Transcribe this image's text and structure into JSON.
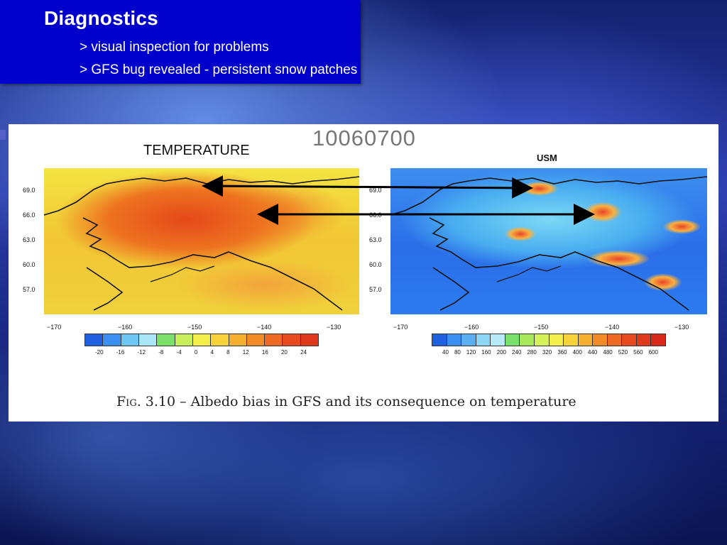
{
  "slide": {
    "title": "Diagnostics",
    "bullets": [
      "> visual inspection for problems",
      "> GFS bug revealed - persistent snow patches"
    ]
  },
  "figure": {
    "date_code": "10060700",
    "left_map": {
      "title": "TEMPERATURE",
      "colorbar_ticks": [
        "-20",
        "-16",
        "-12",
        "-8",
        "-4",
        "0",
        "4",
        "8",
        "12",
        "16",
        "20",
        "24"
      ],
      "colorbar_colors": [
        "#1f5fe0",
        "#3a8ff0",
        "#6ec6f5",
        "#a8e6f8",
        "#7be06a",
        "#c8ee5a",
        "#f3ee4a",
        "#f8d23a",
        "#f6b030",
        "#f28a28",
        "#ee6a24",
        "#e84a20",
        "#e03a1e"
      ]
    },
    "right_map": {
      "title": "USM",
      "colorbar_ticks": [
        "40",
        "80",
        "120",
        "160",
        "200",
        "240",
        "280",
        "320",
        "360",
        "400",
        "440",
        "480",
        "520",
        "560",
        "600"
      ],
      "colorbar_colors": [
        "#1f5fe0",
        "#3a8ff0",
        "#5aaef2",
        "#8ed6f6",
        "#b6eaf8",
        "#7be06a",
        "#a8e85a",
        "#d6f05a",
        "#f3ee4a",
        "#f8d23a",
        "#f6b030",
        "#f28a28",
        "#ee6a24",
        "#e84a20",
        "#e03a1e",
        "#d8281a"
      ]
    },
    "lat_labels": [
      "69.0",
      "66.0",
      "63.0",
      "60.0",
      "57.0"
    ],
    "lon_labels": [
      "−170",
      "−160",
      "−150",
      "−140",
      "−130"
    ],
    "caption_prefix": "Fig. 3.10",
    "caption_text": " – Albedo bias in GFS and its consequence on temperature"
  }
}
